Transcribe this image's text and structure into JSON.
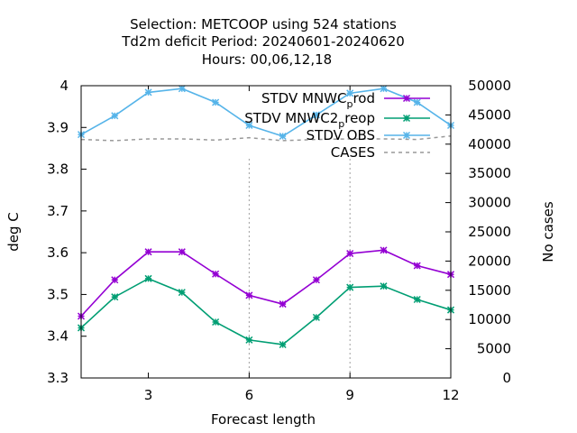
{
  "chart_data": {
    "type": "line",
    "title_lines": [
      "Selection: METCOOP using   524 stations",
      "Td2m deficit   Period: 20240601-20240620",
      "Hours:  00,06,12,18"
    ],
    "xlabel": "Forecast length",
    "ylabel": "deg C",
    "y2label": "No cases",
    "x": [
      1,
      2,
      3,
      4,
      5,
      6,
      7,
      8,
      9,
      10,
      11,
      12
    ],
    "xlim": [
      1,
      12
    ],
    "ylim": [
      3.3,
      4.0
    ],
    "y2lim": [
      0,
      50000
    ],
    "xticks": [
      3,
      6,
      9,
      12
    ],
    "yticks": [
      3.3,
      3.4,
      3.5,
      3.6,
      3.7,
      3.8,
      3.9,
      4.0
    ],
    "ytick_labels": [
      "3.3",
      "3.4",
      "3.5",
      "3.6",
      "3.7",
      "3.8",
      "3.9",
      "4"
    ],
    "y2ticks": [
      0,
      5000,
      10000,
      15000,
      20000,
      25000,
      30000,
      35000,
      40000,
      45000,
      50000
    ],
    "grid": "partial dashed vertical at x=6 and x=9",
    "legend_position": "top-right",
    "series": [
      {
        "name": "STDV MNWC_prod",
        "legend_base": "STDV MNWC",
        "legend_sub": "p",
        "legend_tail": "rod",
        "color": "#9400d3",
        "axis": "y",
        "values": [
          3.448,
          3.535,
          3.602,
          3.602,
          3.549,
          3.498,
          3.477,
          3.535,
          3.598,
          3.606,
          3.569,
          3.548
        ]
      },
      {
        "name": "STDV MNWC2_preop",
        "legend_base": "STDV MNWC2",
        "legend_sub": "p",
        "legend_tail": "reop",
        "color": "#009e73",
        "axis": "y",
        "values": [
          3.42,
          3.494,
          3.538,
          3.505,
          3.434,
          3.391,
          3.38,
          3.445,
          3.517,
          3.52,
          3.488,
          3.463
        ]
      },
      {
        "name": "STDV OBS",
        "legend_base": "STDV OBS",
        "legend_sub": "",
        "legend_tail": "",
        "color": "#56b4e9",
        "axis": "y",
        "values": [
          3.883,
          3.928,
          3.984,
          3.993,
          3.96,
          3.905,
          3.879,
          3.93,
          3.982,
          3.993,
          3.96,
          3.905
        ]
      },
      {
        "name": "CASES",
        "legend_base": "CASES",
        "legend_sub": "",
        "legend_tail": "",
        "color": "#999999",
        "axis": "y2",
        "dashed": true,
        "values": [
          40800,
          40600,
          40900,
          40900,
          40700,
          41100,
          40600,
          40800,
          40900,
          40900,
          40800,
          41400
        ]
      }
    ]
  }
}
